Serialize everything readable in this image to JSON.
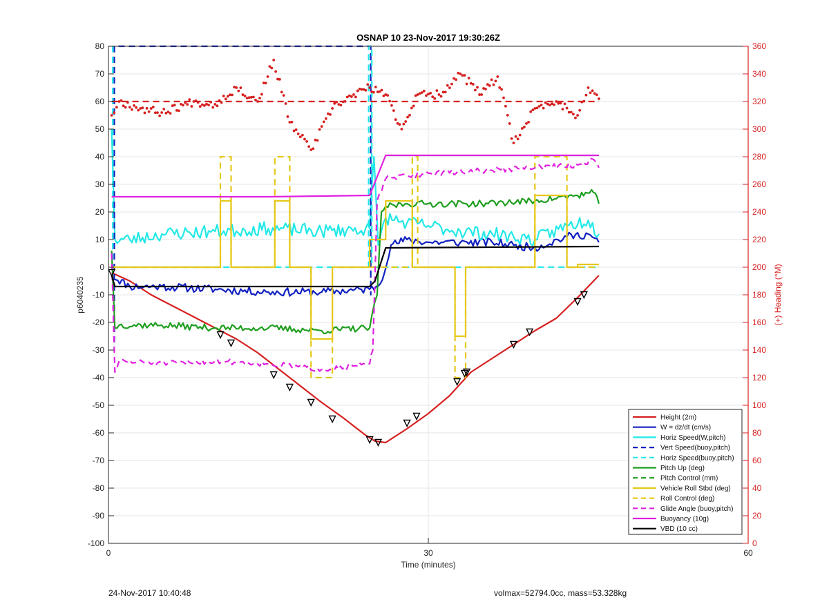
{
  "footer": {
    "left": "24-Nov-2017 10:40:48",
    "right": "volmax=52794.0cc, mass=53.328kg"
  },
  "chart_data": {
    "type": "line",
    "title": "OSNAP 10 23-Nov-2017 19:30:26Z",
    "xlabel": "Time (minutes)",
    "ylabel_left": "p6040235",
    "ylabel_right": "(+) Heading (°M)",
    "xlim": [
      0,
      60
    ],
    "ylim_left": [
      -100,
      80
    ],
    "ylim_right": [
      0,
      360
    ],
    "xticks": [
      0,
      30,
      60
    ],
    "yticks_left": [
      80,
      70,
      60,
      50,
      40,
      30,
      20,
      10,
      0,
      -10,
      -20,
      -30,
      -40,
      -50,
      -60,
      -70,
      -80,
      -90,
      -100
    ],
    "yticks_right": [
      360,
      340,
      320,
      300,
      280,
      260,
      240,
      220,
      200,
      180,
      160,
      140,
      120,
      100,
      80,
      60,
      40,
      20,
      0
    ],
    "grid": true,
    "legend_position": "bottom-right",
    "series": [
      {
        "name": "Height (2m)",
        "color": "#d62020",
        "style": "solid",
        "axis": "left",
        "x": [
          0.3,
          2,
          4,
          6,
          8,
          10,
          12,
          14,
          16,
          18,
          20,
          22,
          24,
          25,
          26,
          28,
          30,
          32,
          34,
          36,
          38,
          40,
          42,
          44,
          46
        ],
        "y": [
          -2,
          -5,
          -10,
          -14,
          -18,
          -22,
          -26,
          -31,
          -37,
          -43,
          -49,
          -54.5,
          -60.5,
          -63,
          -63.5,
          -58.5,
          -53,
          -46.5,
          -38,
          -33,
          -28,
          -23,
          -18.5,
          -11,
          -3
        ]
      },
      {
        "name": "W = dz/dt (cm/s)",
        "color": "#1020c0",
        "style": "solid",
        "axis": "left",
        "noise": 1.5,
        "seed": 11,
        "x": [
          0.3,
          2,
          5,
          10,
          15,
          20,
          24.5,
          25.5,
          26.5,
          28,
          30,
          33,
          36,
          38,
          40,
          43,
          45,
          46
        ],
        "y": [
          -3,
          -7,
          -7,
          -8,
          -9,
          -9,
          -8,
          -6,
          8,
          10,
          9,
          9,
          9,
          8,
          7,
          11,
          12,
          9
        ]
      },
      {
        "name": "Horiz Speed(W,pitch)",
        "color": "#22e8e8",
        "style": "solid",
        "axis": "left",
        "noise": 2.5,
        "seed": 23,
        "x": [
          0.3,
          0.6,
          2,
          5,
          10,
          15,
          20,
          24.5,
          24.9,
          25.3,
          26,
          28,
          30,
          33,
          36,
          38,
          40,
          43,
          45,
          46
        ],
        "y": [
          50,
          10,
          10,
          12,
          13,
          14,
          13,
          14,
          40,
          8,
          18,
          16,
          15,
          13,
          12,
          11,
          10,
          15,
          17,
          12
        ]
      },
      {
        "name": "Vert Speed(buoy,pitch)",
        "color": "#1020c0",
        "style": "dashed",
        "axis": "left",
        "x": [
          0.55,
          0.55,
          0.55,
          24.6,
          24.6,
          24.6
        ],
        "y": [
          80,
          -28,
          80,
          80,
          -10,
          80
        ]
      },
      {
        "name": "Horiz Speed(buoy,pitch)",
        "color": "#22e8e8",
        "style": "dashed",
        "axis": "left",
        "x": [
          0.4,
          0.4,
          0.7,
          24.4,
          24.4,
          24.7,
          24.7,
          46
        ],
        "y": [
          80,
          0,
          0,
          0,
          80,
          80,
          0,
          0
        ]
      },
      {
        "name": "Pitch Up (deg)",
        "color": "#1e9e1e",
        "style": "solid",
        "axis": "left",
        "noise": 1.2,
        "seed": 37,
        "x": [
          0.3,
          0.6,
          1,
          5,
          10,
          15,
          20,
          24.5,
          25.2,
          25.6,
          26,
          28,
          30,
          35,
          40,
          44,
          45.5,
          46
        ],
        "y": [
          6,
          -22,
          -21,
          -21,
          -22,
          -22,
          -23,
          -22,
          -10,
          20,
          22,
          23,
          23,
          23,
          24,
          26,
          27,
          23
        ]
      },
      {
        "name": "Pitch Control (mm)",
        "color": "#1e9e1e",
        "style": "dashed",
        "axis": "left",
        "x": [],
        "y": []
      },
      {
        "name": "Vehicle Roll Stbd (deg)",
        "color": "#e6c81a",
        "style": "solid",
        "axis": "left",
        "x": [
          0.3,
          10.5,
          10.5,
          11.5,
          11.5,
          15.6,
          15.6,
          17,
          17,
          19,
          19,
          21,
          21,
          24.5,
          24.5,
          26,
          26,
          28.5,
          28.5,
          29,
          29,
          32.5,
          32.5,
          33.5,
          33.5,
          40,
          40,
          43,
          43,
          44,
          44,
          46
        ],
        "y": [
          0,
          0,
          24,
          24,
          0,
          0,
          24,
          24,
          0,
          0,
          -26,
          -26,
          0,
          0,
          10,
          10,
          24,
          24,
          0,
          0,
          0,
          0,
          -25,
          -25,
          0,
          0,
          26,
          26,
          0,
          0,
          1,
          1
        ]
      },
      {
        "name": "Roll Control (deg)",
        "color": "#e6c81a",
        "style": "dashed",
        "axis": "left",
        "x": [
          0.3,
          10.5,
          10.5,
          11.5,
          11.5,
          15.6,
          15.6,
          17,
          17,
          19,
          19,
          21,
          21,
          24.5,
          24.5,
          28.5,
          28.5,
          29,
          29,
          32.5,
          32.5,
          33.5,
          33.5,
          40,
          40,
          43,
          43,
          44,
          44,
          46
        ],
        "y": [
          0,
          0,
          40,
          40,
          0,
          0,
          40,
          40,
          0,
          0,
          -40,
          -40,
          0,
          0,
          0,
          0,
          40,
          40,
          0,
          0,
          -40,
          -40,
          0,
          0,
          40,
          40,
          0,
          0,
          0,
          0
        ]
      },
      {
        "name": "Glide Angle (buoy,pitch)",
        "color": "#e020e0",
        "style": "dashed",
        "axis": "left",
        "noise": 1.0,
        "seed": 51,
        "x": [
          0.3,
          0.6,
          1,
          5,
          10,
          15,
          20,
          24.5,
          24.8,
          25.2,
          26,
          28,
          30,
          35,
          40,
          44,
          45.5,
          46
        ],
        "y": [
          5,
          -38,
          -34,
          -35,
          -34,
          -35,
          -37,
          -35,
          -30,
          24,
          32,
          33,
          34,
          35,
          36,
          37,
          39,
          36
        ]
      },
      {
        "name": "Buoyancy (10g)",
        "color": "#e020e0",
        "style": "solid",
        "axis": "left",
        "x": [
          0.3,
          15,
          24.5,
          26,
          46
        ],
        "y": [
          25.5,
          25.5,
          26,
          40.5,
          40.5
        ]
      },
      {
        "name": "VBD (10 cc)",
        "color": "#000000",
        "style": "solid",
        "axis": "left",
        "x": [
          0.3,
          0.6,
          24.5,
          25,
          26,
          46
        ],
        "y": [
          -3,
          -7,
          -7,
          -5,
          7,
          7.5
        ]
      },
      {
        "name": "",
        "color": "#d62020",
        "style": "dotted",
        "axis": "right",
        "noise": 3,
        "seed": 67,
        "x": [
          0.3,
          1,
          3,
          5,
          8,
          10,
          12,
          14,
          15.5,
          17,
          19,
          21,
          23,
          24.5,
          26,
          27.5,
          29,
          31,
          33,
          35,
          36.5,
          38,
          40,
          42,
          44,
          45,
          46
        ],
        "y": [
          310,
          320,
          315,
          312,
          320,
          318,
          330,
          320,
          350,
          305,
          285,
          315,
          325,
          330,
          325,
          300,
          325,
          325,
          340,
          325,
          338,
          290,
          315,
          320,
          310,
          330,
          322
        ]
      },
      {
        "name": "",
        "color": "#d62020",
        "style": "dashed",
        "axis": "right",
        "x": [
          0.3,
          46
        ],
        "y": [
          320,
          320
        ]
      }
    ],
    "markers": {
      "x": [
        0.3,
        10.5,
        11.5,
        15.5,
        17,
        19,
        21,
        24.5,
        25.3,
        28,
        28.9,
        32.7,
        33.4,
        33.6,
        38,
        39.5,
        44,
        44.6
      ],
      "y": [
        -2,
        -24.5,
        -27.5,
        -39,
        -43.5,
        -49,
        -55,
        -62.5,
        -63.5,
        -56.5,
        -54,
        -41.5,
        -38.5,
        -38,
        -28,
        -23.5,
        -12.5,
        -10
      ]
    }
  }
}
